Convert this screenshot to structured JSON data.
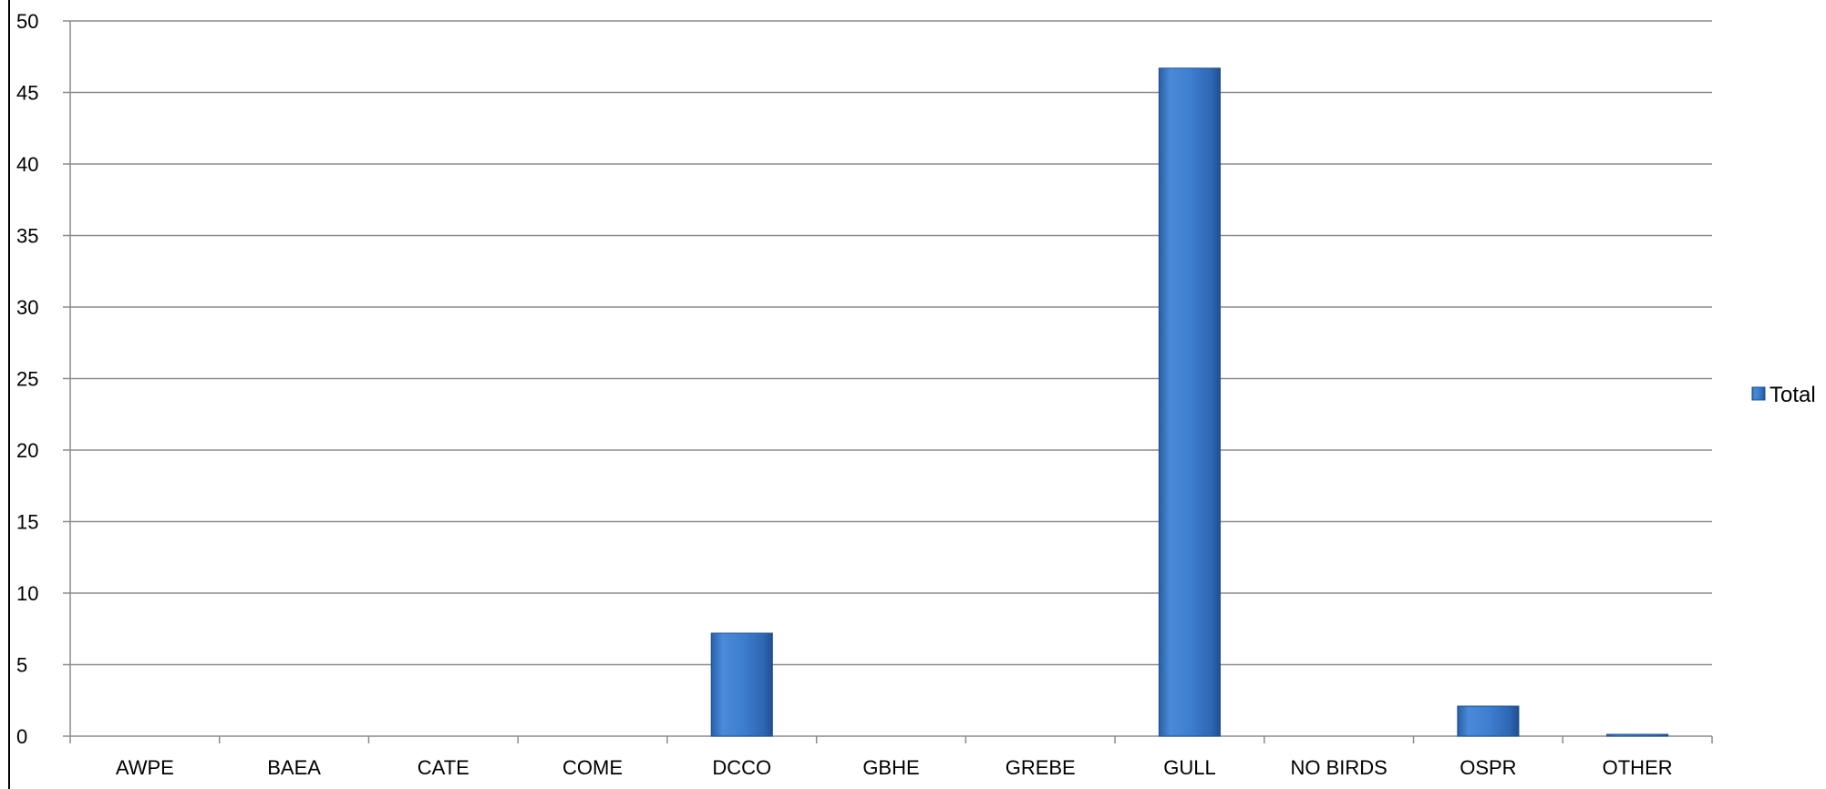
{
  "chart_data": {
    "type": "bar",
    "categories": [
      "AWPE",
      "BAEA",
      "CATE",
      "COME",
      "DCCO",
      "GBHE",
      "GREBE",
      "GULL",
      "NO BIRDS",
      "OSPR",
      "OTHER"
    ],
    "series": [
      {
        "name": "Total",
        "values": [
          0,
          0,
          0,
          0,
          7.2,
          0,
          0,
          46.7,
          0,
          2.1,
          0.1
        ]
      }
    ],
    "title": "",
    "xlabel": "",
    "ylabel": "",
    "ylim": [
      0,
      50
    ],
    "yticks": [
      0,
      5,
      10,
      15,
      20,
      25,
      30,
      35,
      40,
      45,
      50
    ],
    "grid": true,
    "legend_position": "right",
    "colors": {
      "bar_light": "#5b9be4",
      "bar_main": "#3a78c6",
      "bar_dark": "#1f4f8f",
      "grid": "#8c8c8c"
    }
  }
}
